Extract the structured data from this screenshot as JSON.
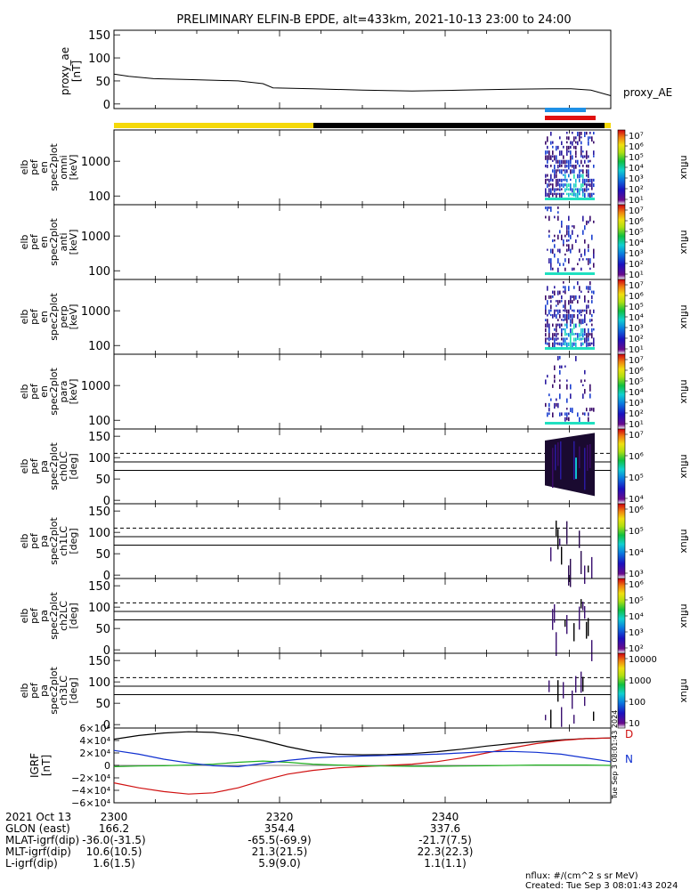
{
  "title": "PRELIMINARY ELFIN-B EPDE, alt=433km, 2021-10-13 23:00 to 24:00",
  "colors": {
    "bar_yellow": "#f5d90a",
    "bar_black": "#000000",
    "bar_blue": "#1e90e6",
    "bar_red": "#e01010",
    "bx": "#d01010",
    "by": "#20b020",
    "bz": "#1030d0",
    "bt": "#000000"
  },
  "proxy_ae": {
    "ylabel": [
      "proxy_ae",
      "[nT]"
    ],
    "legend": "proxy_AE",
    "yticks": [
      "0",
      "50",
      "100",
      "150"
    ],
    "ylim": [
      -10,
      160
    ],
    "x": [
      0.0,
      0.03,
      0.08,
      0.15,
      0.25,
      0.3,
      0.32,
      0.4,
      0.5,
      0.6,
      0.7,
      0.8,
      0.88,
      0.92,
      0.96,
      0.98,
      1.0
    ],
    "y": [
      65,
      60,
      55,
      53,
      50,
      44,
      35,
      33,
      30,
      28,
      30,
      32,
      33,
      33,
      30,
      24,
      18
    ]
  },
  "spectrograms": [
    {
      "ylabel": [
        "elb",
        "pef",
        "en",
        "spec2plot",
        "omni",
        "[keV]"
      ],
      "yticks": [
        "1000",
        "100"
      ],
      "cbar": [
        "10⁷",
        "10⁶",
        "10⁵",
        "10⁴",
        "10³",
        "10²",
        "10¹"
      ],
      "zlabel": "nflux",
      "intensity": 1.0
    },
    {
      "ylabel": [
        "elb",
        "pef",
        "en",
        "spec2plot",
        "anti",
        "[keV]"
      ],
      "yticks": [
        "1000",
        "100"
      ],
      "cbar": [
        "10⁷",
        "10⁶",
        "10⁵",
        "10⁴",
        "10³",
        "10²",
        "10¹"
      ],
      "zlabel": "nflux",
      "intensity": 0.35
    },
    {
      "ylabel": [
        "elb",
        "pef",
        "en",
        "spec2plot",
        "perp",
        "[keV]"
      ],
      "yticks": [
        "1000",
        "100"
      ],
      "cbar": [
        "10⁷",
        "10⁶",
        "10⁵",
        "10⁴",
        "10³",
        "10²",
        "10¹"
      ],
      "zlabel": "nflux",
      "intensity": 0.9
    },
    {
      "ylabel": [
        "elb",
        "pef",
        "en",
        "spec2plot",
        "para",
        "[keV]"
      ],
      "yticks": [
        "1000",
        "100"
      ],
      "cbar": [
        "10⁷",
        "10⁶",
        "10⁵",
        "10⁴",
        "10³",
        "10²",
        "10¹"
      ],
      "zlabel": "nflux",
      "intensity": 0.3
    }
  ],
  "pitch_panels": [
    {
      "ylabel": [
        "elb",
        "pef",
        "pa",
        "spec2plot",
        "ch0LC",
        "[deg]"
      ],
      "yticks": [
        "0",
        "50",
        "100",
        "150"
      ],
      "cbar": [
        "10⁷",
        "10⁶",
        "10⁵",
        "10⁴"
      ],
      "zlabel": "nflux",
      "fill": "block"
    },
    {
      "ylabel": [
        "elb",
        "pef",
        "pa",
        "spec2plot",
        "ch1LC",
        "[deg]"
      ],
      "yticks": [
        "0",
        "50",
        "100",
        "150"
      ],
      "cbar": [
        "10⁶",
        "10⁵",
        "10⁴",
        "10³"
      ],
      "zlabel": "nflux",
      "fill": "sparse"
    },
    {
      "ylabel": [
        "elb",
        "pef",
        "pa",
        "spec2plot",
        "ch2LC",
        "[deg]"
      ],
      "yticks": [
        "0",
        "50",
        "100",
        "150"
      ],
      "cbar": [
        "10⁶",
        "10⁵",
        "10⁴",
        "10³",
        "10²"
      ],
      "zlabel": "nflux",
      "fill": "sparse"
    },
    {
      "ylabel": [
        "elb",
        "pef",
        "pa",
        "spec2plot",
        "ch3LC",
        "[deg]"
      ],
      "yticks": [
        "0",
        "50",
        "100",
        "150"
      ],
      "cbar": [
        "10000",
        "1000",
        "100",
        "10"
      ],
      "zlabel": "nflux",
      "fill": "streaks"
    }
  ],
  "igrf": {
    "ylabel": [
      "IGRF",
      "[nT]"
    ],
    "yticks": [
      "6×10⁴",
      "4×10⁴",
      "2×10⁴",
      "0",
      "−2×10⁴",
      "−4×10⁴",
      "−6×10⁴"
    ],
    "ylim": [
      -60000,
      60000
    ],
    "x": [
      0.0,
      0.05,
      0.1,
      0.15,
      0.2,
      0.25,
      0.3,
      0.35,
      0.4,
      0.45,
      0.5,
      0.55,
      0.6,
      0.65,
      0.7,
      0.75,
      0.8,
      0.85,
      0.9,
      0.95,
      1.0
    ],
    "bt": [
      42000,
      48000,
      52000,
      54000,
      53000,
      48000,
      40000,
      30000,
      22000,
      18000,
      17000,
      17500,
      19000,
      22000,
      26000,
      31000,
      35000,
      38000,
      41000,
      43000,
      44000
    ],
    "bx": [
      -28000,
      -36000,
      -42000,
      -46000,
      -44000,
      -36000,
      -24000,
      -14000,
      -8000,
      -4000,
      -2000,
      0,
      2000,
      6000,
      12000,
      20000,
      28000,
      35000,
      40000,
      43000,
      44000
    ],
    "by": [
      -2000,
      -1000,
      -500,
      500,
      2000,
      5000,
      7000,
      5000,
      2000,
      500,
      -500,
      -1000,
      -1500,
      -1500,
      -1000,
      -500,
      0,
      500,
      500,
      500,
      0
    ],
    "bz": [
      24000,
      18000,
      10000,
      4000,
      -500,
      -2000,
      3000,
      8000,
      12000,
      14000,
      15000,
      16000,
      17000,
      18000,
      20000,
      22000,
      22500,
      21000,
      18000,
      12000,
      6000
    ],
    "right_labels": [
      "D",
      "N"
    ]
  },
  "vertical_stamp": "Tue Sep  3 08:01:43 2024",
  "ephemeris": {
    "rows": [
      {
        "label": "2021 Oct 13",
        "values": [
          "2300",
          "2320",
          "2340"
        ]
      },
      {
        "label": "GLON (east)",
        "values": [
          "166.2",
          "354.4",
          "337.6"
        ]
      },
      {
        "label": "MLAT-igrf(dip)",
        "values": [
          "-36.0(-31.5)",
          "-65.5(-69.9)",
          "-21.7(7.5)"
        ]
      },
      {
        "label": "MLT-igrf(dip)",
        "values": [
          "10.6(10.5)",
          "21.3(21.5)",
          "22.3(22.3)"
        ]
      },
      {
        "label": "L-igrf(dip)",
        "values": [
          "1.6(1.5)",
          "5.9(9.0)",
          "1.1(1.1)"
        ]
      }
    ],
    "tick_positions": [
      0.0,
      0.3333,
      0.6667
    ]
  },
  "footer": {
    "units": "nflux: #/(cm^2 s sr MeV)",
    "created": "Created: Tue Sep  3 08:01:43 2024"
  }
}
